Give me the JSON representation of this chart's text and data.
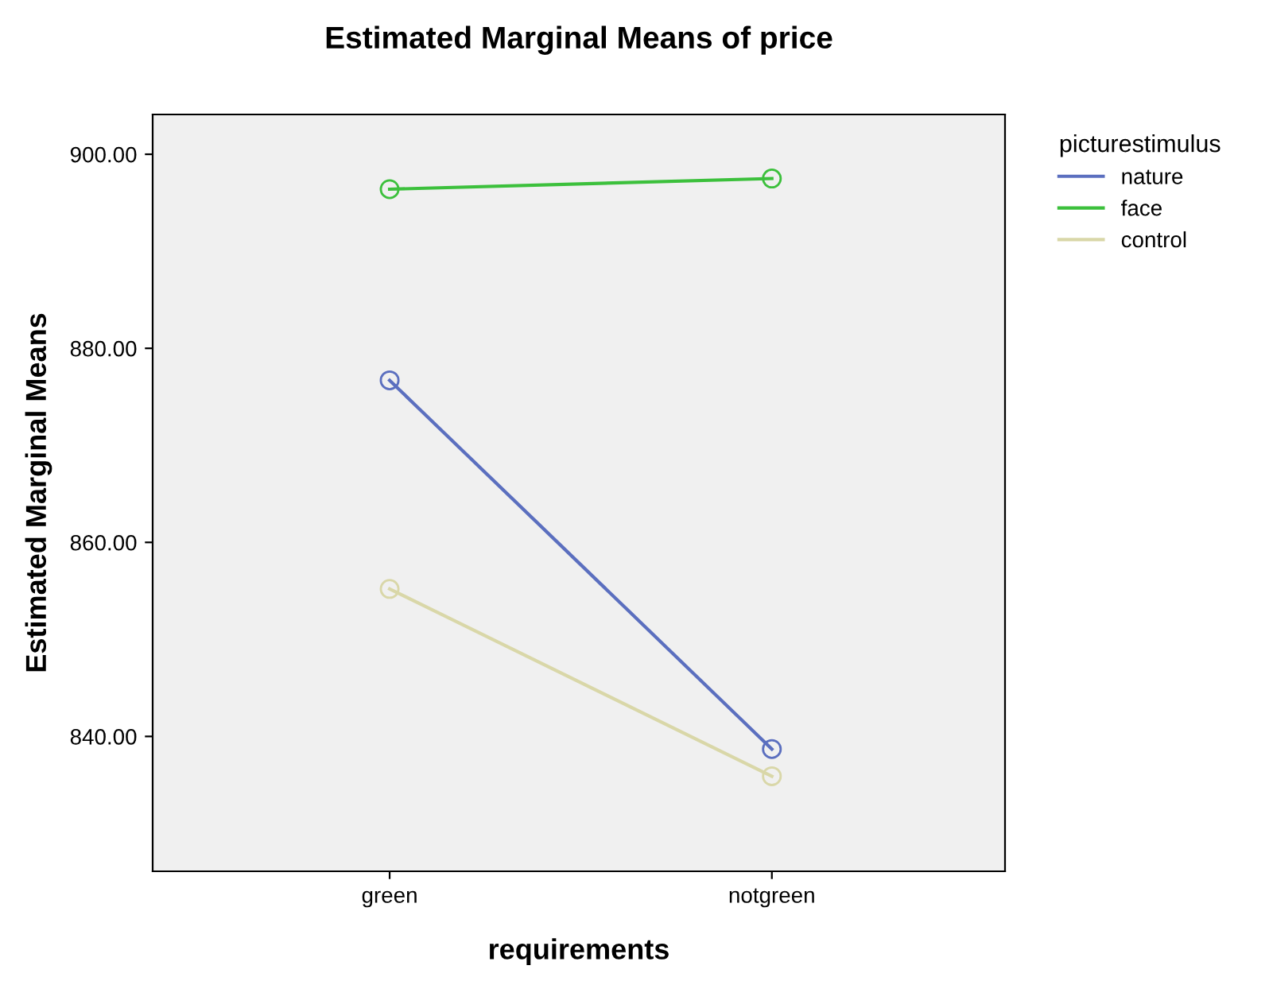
{
  "chart_data": {
    "type": "line",
    "title": "Estimated Marginal Means of price",
    "xlabel": "requirements",
    "ylabel": "Estimated Marginal Means",
    "legend_title": "picturestimulus",
    "categories": [
      "green",
      "notgreen"
    ],
    "series": [
      {
        "name": "nature",
        "color": "#5b6fbf",
        "values": [
          876.7,
          838.7
        ]
      },
      {
        "name": "face",
        "color": "#3cc03c",
        "values": [
          896.4,
          897.5
        ]
      },
      {
        "name": "control",
        "color": "#d9d7a8",
        "values": [
          855.2,
          835.9
        ]
      }
    ],
    "ylim": [
      826.1,
      904.1
    ],
    "yticks": [
      {
        "value": 840,
        "label": "840.00"
      },
      {
        "value": 860,
        "label": "860.00"
      },
      {
        "value": 880,
        "label": "880.00"
      },
      {
        "value": 900,
        "label": "900.00"
      }
    ],
    "marker": "circle",
    "line_style": "solid",
    "grid": false,
    "legend": "right"
  }
}
